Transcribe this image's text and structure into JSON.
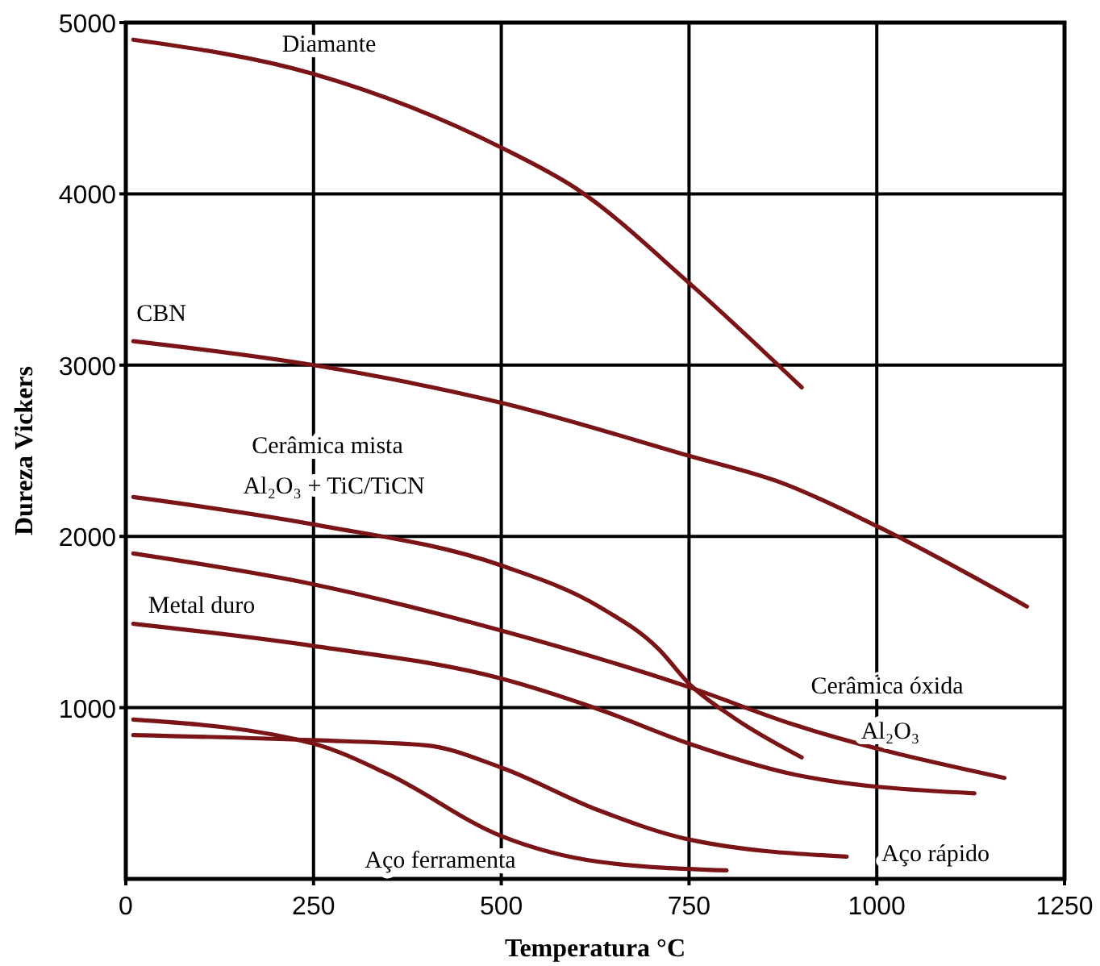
{
  "chart_data": {
    "type": "line",
    "xlabel": "Temperatura °C",
    "ylabel": "Dureza Vickers",
    "xlim": [
      0,
      1250
    ],
    "ylim": [
      0,
      5000
    ],
    "xticks": [
      0,
      250,
      500,
      750,
      1000,
      1250
    ],
    "yticks": [
      1000,
      2000,
      3000,
      4000,
      5000
    ],
    "grid": true,
    "marker": "none",
    "line_style": "solid",
    "series": [
      {
        "color": "#7a1416",
        "x": [
          10,
          250,
          500,
          600,
          750,
          900
        ],
        "values": [
          4900,
          4700,
          4270,
          4030,
          3480,
          2870
        ]
      },
      {
        "color": "#7a1416",
        "x": [
          10,
          250,
          500,
          750,
          875,
          1000,
          1200
        ],
        "values": [
          3140,
          3000,
          2780,
          2470,
          2310,
          2060,
          1590
        ]
      },
      {
        "color": "#7a1416",
        "x": [
          10,
          250,
          500,
          630,
          710,
          750,
          810,
          900
        ],
        "values": [
          2230,
          2070,
          1830,
          1590,
          1340,
          1140,
          940,
          710
        ]
      },
      {
        "color": "#7a1416",
        "x": [
          10,
          250,
          500,
          750,
          890,
          1170
        ],
        "values": [
          1900,
          1720,
          1450,
          1120,
          900,
          590
        ]
      },
      {
        "color": "#7a1416",
        "x": [
          10,
          250,
          500,
          630,
          750,
          890,
          1130
        ],
        "values": [
          1490,
          1360,
          1170,
          990,
          790,
          610,
          500
        ]
      },
      {
        "color": "#7a1416",
        "x": [
          10,
          250,
          400,
          500,
          630,
          750,
          960
        ],
        "values": [
          840,
          810,
          780,
          650,
          400,
          230,
          130
        ]
      },
      {
        "color": "#7a1416",
        "x": [
          10,
          250,
          350,
          500,
          630,
          800
        ],
        "values": [
          930,
          790,
          610,
          250,
          100,
          50
        ]
      }
    ],
    "annotations": [
      "Diamante",
      "CBN",
      "Cerâmica mista",
      "Al₂O₃ + TiC/TiCN",
      "Metal duro",
      "Cerâmica óxida",
      "Al₂O₃",
      "Aço ferramenta",
      "Aço rápido"
    ]
  }
}
